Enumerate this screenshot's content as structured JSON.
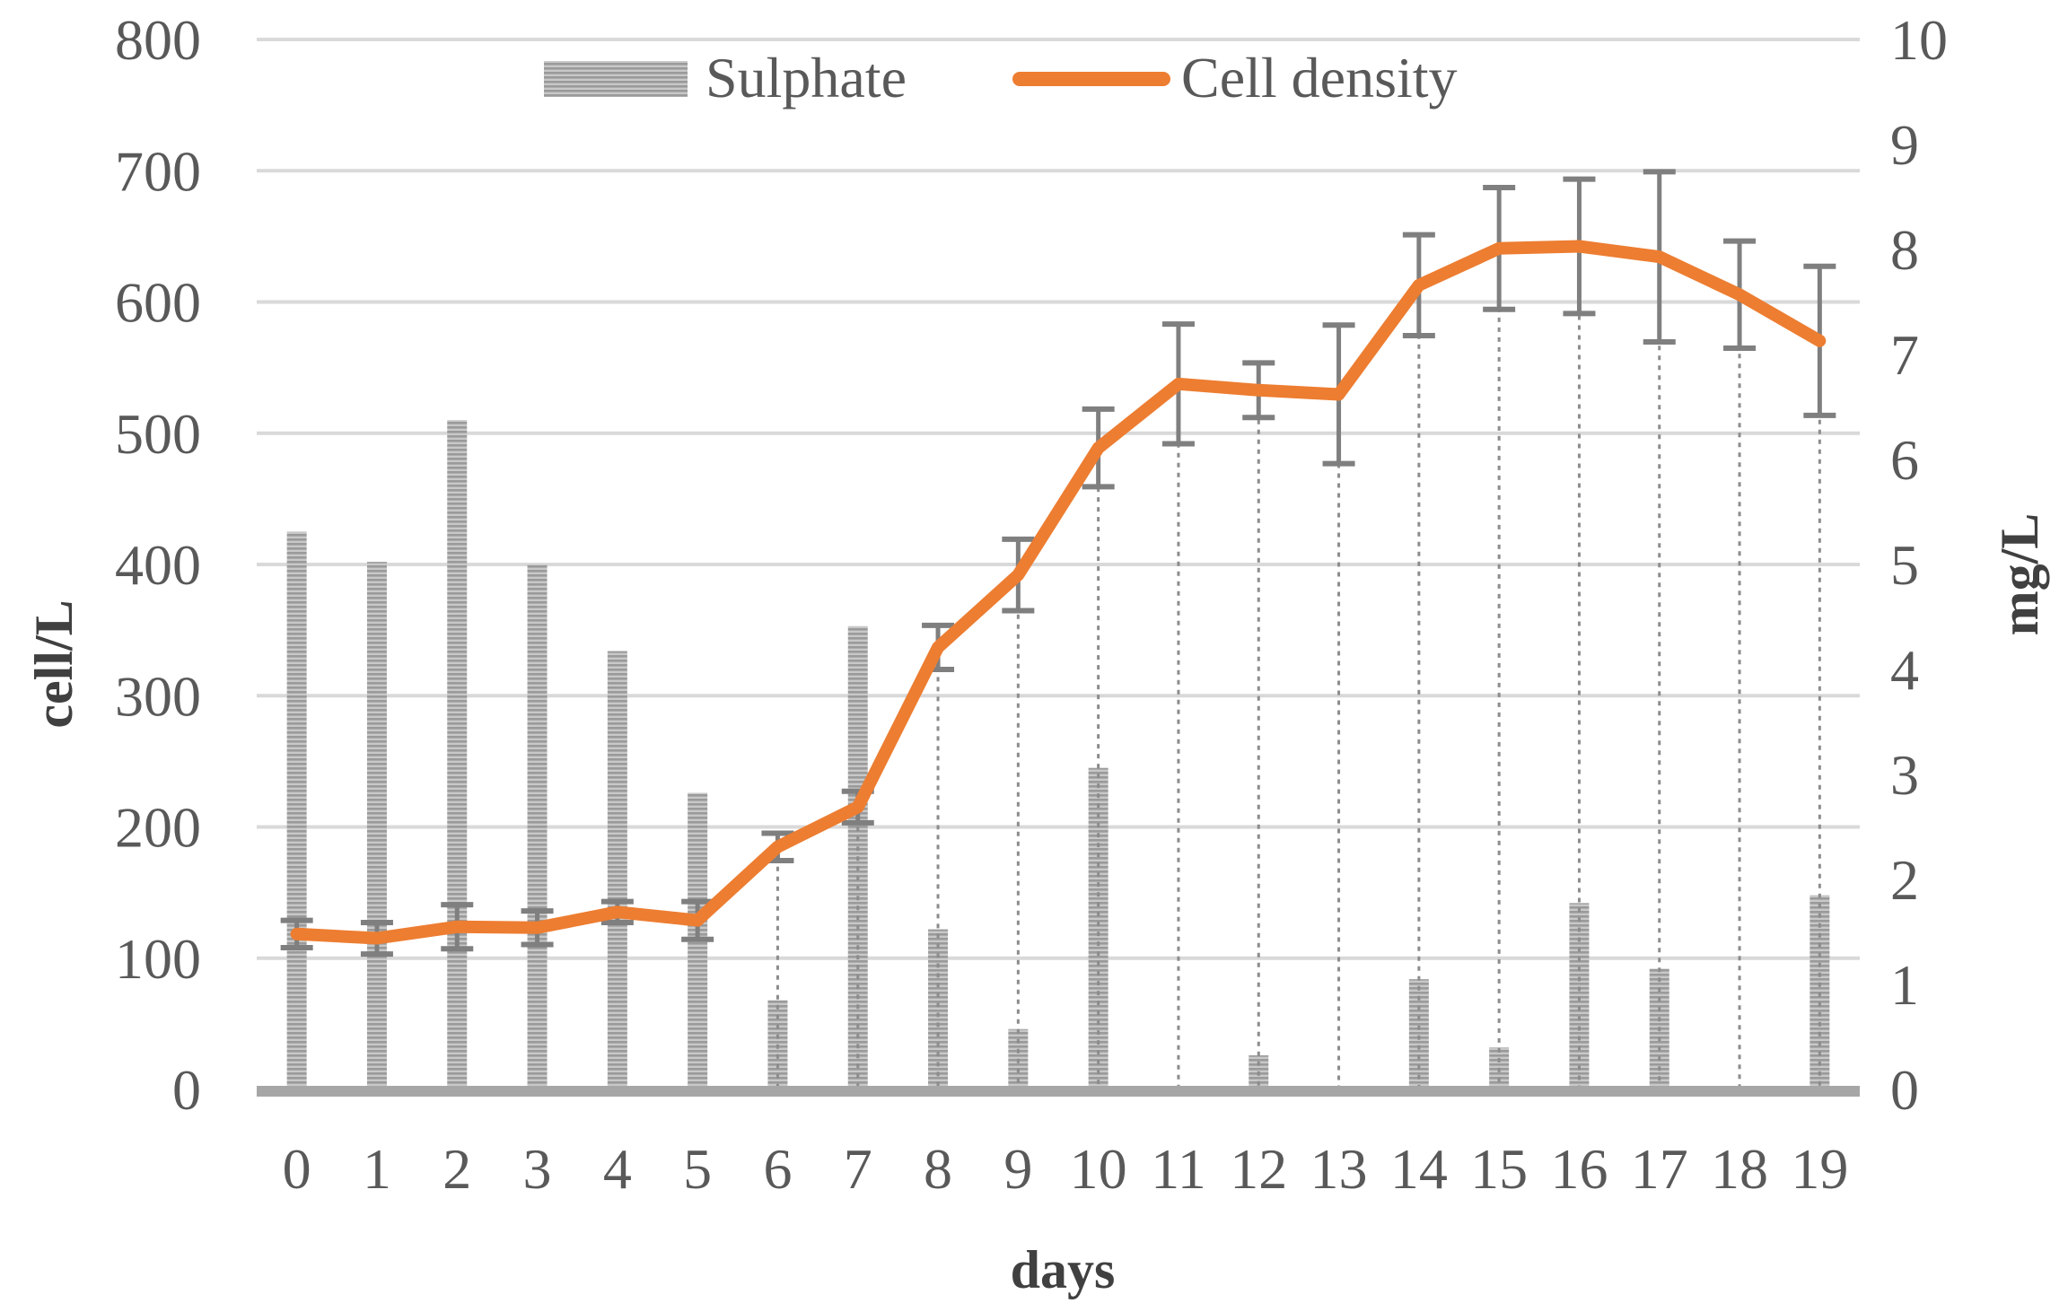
{
  "chart_data": {
    "type": "bar+line",
    "title": "",
    "xlabel": "days",
    "ylabel_left": "cell/L",
    "ylabel_right": "mg/L",
    "categories": [
      "0",
      "1",
      "2",
      "3",
      "4",
      "5",
      "6",
      "7",
      "8",
      "9",
      "10",
      "11",
      "12",
      "13",
      "14",
      "15",
      "16",
      "17",
      "18",
      "19"
    ],
    "ylim_left": [
      0,
      800
    ],
    "yticks_left": [
      "0",
      "100",
      "200",
      "300",
      "400",
      "500",
      "600",
      "700",
      "800"
    ],
    "ylim_right": [
      0,
      10
    ],
    "yticks_right": [
      "0",
      "1",
      "2",
      "3",
      "4",
      "5",
      "6",
      "7",
      "8",
      "9",
      "10"
    ],
    "grid": true,
    "legend_position": "top-center",
    "series": [
      {
        "name": "Sulphate",
        "kind": "bar",
        "axis": "left",
        "color": "#a6a6a6",
        "values": [
          425,
          402,
          510,
          400,
          334,
          226,
          68,
          353,
          122,
          46,
          245,
          0,
          26,
          0,
          84,
          32,
          142,
          92,
          0,
          148
        ]
      },
      {
        "name": "Cell density",
        "kind": "line",
        "axis": "right",
        "color": "#ed7d31",
        "values": [
          1.48,
          1.44,
          1.55,
          1.54,
          1.69,
          1.61,
          2.31,
          2.69,
          4.21,
          4.9,
          6.11,
          6.72,
          6.66,
          6.62,
          7.66,
          8.01,
          8.03,
          7.93,
          7.57,
          7.13
        ],
        "error": [
          0.13,
          0.15,
          0.21,
          0.16,
          0.1,
          0.18,
          0.13,
          0.15,
          0.21,
          0.34,
          0.37,
          0.57,
          0.26,
          0.66,
          0.48,
          0.58,
          0.64,
          0.81,
          0.51,
          0.71
        ]
      }
    ]
  }
}
